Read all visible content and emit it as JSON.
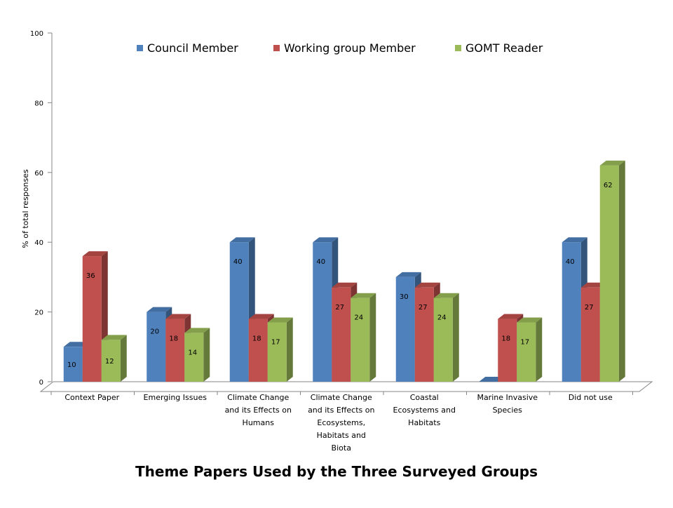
{
  "chart_data": {
    "type": "bar",
    "title": "Theme Papers Used by the Three Surveyed Groups",
    "ylabel": "% of total responses",
    "xlabel": "",
    "ylim": [
      0,
      100
    ],
    "yticks": [
      0,
      20,
      40,
      60,
      80,
      100
    ],
    "grid": false,
    "legend_position": "top",
    "categories": [
      "Context Paper",
      "Emerging Issues",
      "Climate Change and its Effects on Humans",
      "Climate Change and its Effects on Ecosystems, Habitats and Biota",
      "Coastal Ecosystems and Habitats",
      "Marine Invasive Species",
      "Did not use"
    ],
    "category_lines": [
      [
        "Context Paper"
      ],
      [
        "Emerging Issues"
      ],
      [
        "Climate Change",
        "and its Effects on",
        "Humans"
      ],
      [
        "Climate Change",
        "and its Effects on",
        "Ecosystems,",
        "Habitats and",
        "Biota"
      ],
      [
        "Coastal",
        "Ecosystems and",
        "Habitats"
      ],
      [
        "Marine Invasive",
        "Species"
      ],
      [
        "Did not use"
      ]
    ],
    "series": [
      {
        "name": "Council Member",
        "color": "#4F81BD",
        "values": [
          10,
          20,
          40,
          40,
          30,
          0,
          40
        ],
        "labels": [
          "10",
          "20",
          "40",
          "40",
          "30",
          "",
          "40"
        ]
      },
      {
        "name": "Working group Member",
        "color": "#C0504D",
        "values": [
          36,
          18,
          18,
          27,
          27,
          18,
          27
        ],
        "labels": [
          "36",
          "18",
          "18",
          "27",
          "27",
          "18",
          "27"
        ]
      },
      {
        "name": "GOMT Reader",
        "color": "#9BBB59",
        "values": [
          12,
          14,
          17,
          24,
          24,
          17,
          62
        ],
        "labels": [
          "12",
          "14",
          "17",
          "24",
          "24",
          "17",
          "62"
        ]
      }
    ]
  }
}
